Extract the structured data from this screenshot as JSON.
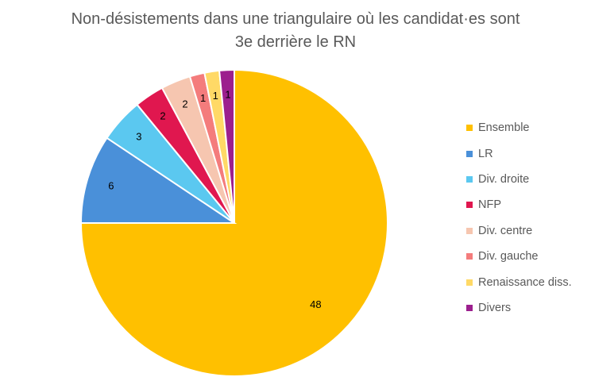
{
  "chart_data": {
    "type": "pie",
    "title_lines": [
      "Non-désistements dans une triangulaire où les candidat·es sont",
      "3e derrière le RN"
    ],
    "categories": [
      "Ensemble",
      "LR",
      "Div. droite",
      "NFP",
      "Div. centre",
      "Div. gauche",
      "Renaissance diss.",
      "Divers"
    ],
    "values": [
      48,
      6,
      3,
      2,
      2,
      1,
      1,
      1
    ],
    "colors": [
      "#FFC000",
      "#4A90D9",
      "#5BC8F0",
      "#E0174F",
      "#F6C6B0",
      "#F47C7C",
      "#FFD966",
      "#9C1F8E"
    ],
    "data_labels_shown": true,
    "legend_position": "right"
  }
}
